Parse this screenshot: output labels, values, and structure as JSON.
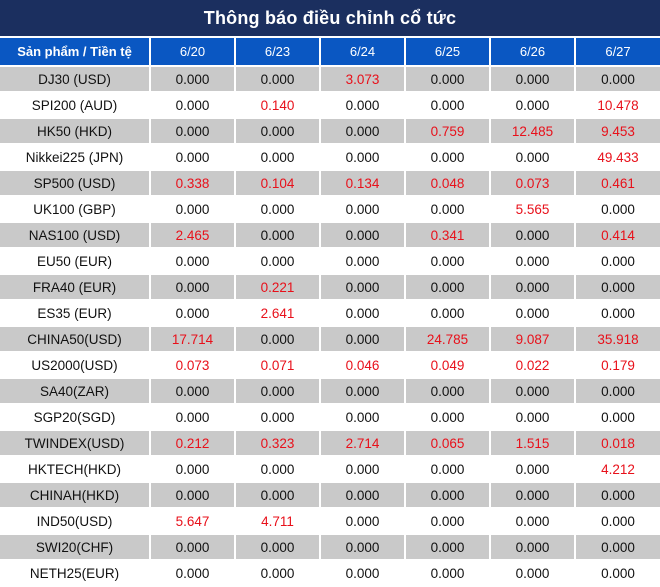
{
  "title": "Thông báo điều chỉnh cổ tức",
  "header": {
    "product_label": "Sản phẩm / Tiền tệ",
    "dates": [
      "6/20",
      "6/23",
      "6/24",
      "6/25",
      "6/26",
      "6/27"
    ]
  },
  "colors": {
    "title_bg": "#1b2f5f",
    "header_bg": "#0a57c2",
    "shaded_row": "#c9c9c9",
    "highlight_text": "#e8101a"
  },
  "rows": [
    {
      "product": "DJ30 (USD)",
      "values": [
        "0.000",
        "0.000",
        "3.073",
        "0.000",
        "0.000",
        "0.000"
      ]
    },
    {
      "product": "SPI200 (AUD)",
      "values": [
        "0.000",
        "0.140",
        "0.000",
        "0.000",
        "0.000",
        "10.478"
      ]
    },
    {
      "product": "HK50 (HKD)",
      "values": [
        "0.000",
        "0.000",
        "0.000",
        "0.759",
        "12.485",
        "9.453"
      ]
    },
    {
      "product": "Nikkei225 (JPN)",
      "values": [
        "0.000",
        "0.000",
        "0.000",
        "0.000",
        "0.000",
        "49.433"
      ]
    },
    {
      "product": "SP500 (USD)",
      "values": [
        "0.338",
        "0.104",
        "0.134",
        "0.048",
        "0.073",
        "0.461"
      ]
    },
    {
      "product": "UK100 (GBP)",
      "values": [
        "0.000",
        "0.000",
        "0.000",
        "0.000",
        "5.565",
        "0.000"
      ]
    },
    {
      "product": "NAS100 (USD)",
      "values": [
        "2.465",
        "0.000",
        "0.000",
        "0.341",
        "0.000",
        "0.414"
      ]
    },
    {
      "product": "EU50 (EUR)",
      "values": [
        "0.000",
        "0.000",
        "0.000",
        "0.000",
        "0.000",
        "0.000"
      ]
    },
    {
      "product": "FRA40 (EUR)",
      "values": [
        "0.000",
        "0.221",
        "0.000",
        "0.000",
        "0.000",
        "0.000"
      ]
    },
    {
      "product": "ES35 (EUR)",
      "values": [
        "0.000",
        "2.641",
        "0.000",
        "0.000",
        "0.000",
        "0.000"
      ]
    },
    {
      "product": "CHINA50(USD)",
      "values": [
        "17.714",
        "0.000",
        "0.000",
        "24.785",
        "9.087",
        "35.918"
      ]
    },
    {
      "product": "US2000(USD)",
      "values": [
        "0.073",
        "0.071",
        "0.046",
        "0.049",
        "0.022",
        "0.179"
      ]
    },
    {
      "product": "SA40(ZAR)",
      "values": [
        "0.000",
        "0.000",
        "0.000",
        "0.000",
        "0.000",
        "0.000"
      ]
    },
    {
      "product": "SGP20(SGD)",
      "values": [
        "0.000",
        "0.000",
        "0.000",
        "0.000",
        "0.000",
        "0.000"
      ]
    },
    {
      "product": "TWINDEX(USD)",
      "values": [
        "0.212",
        "0.323",
        "2.714",
        "0.065",
        "1.515",
        "0.018"
      ]
    },
    {
      "product": "HKTECH(HKD)",
      "values": [
        "0.000",
        "0.000",
        "0.000",
        "0.000",
        "0.000",
        "4.212"
      ]
    },
    {
      "product": "CHINAH(HKD)",
      "values": [
        "0.000",
        "0.000",
        "0.000",
        "0.000",
        "0.000",
        "0.000"
      ]
    },
    {
      "product": "IND50(USD)",
      "values": [
        "5.647",
        "4.711",
        "0.000",
        "0.000",
        "0.000",
        "0.000"
      ]
    },
    {
      "product": "SWI20(CHF)",
      "values": [
        "0.000",
        "0.000",
        "0.000",
        "0.000",
        "0.000",
        "0.000"
      ]
    },
    {
      "product": "NETH25(EUR)",
      "values": [
        "0.000",
        "0.000",
        "0.000",
        "0.000",
        "0.000",
        "0.000"
      ]
    }
  ]
}
